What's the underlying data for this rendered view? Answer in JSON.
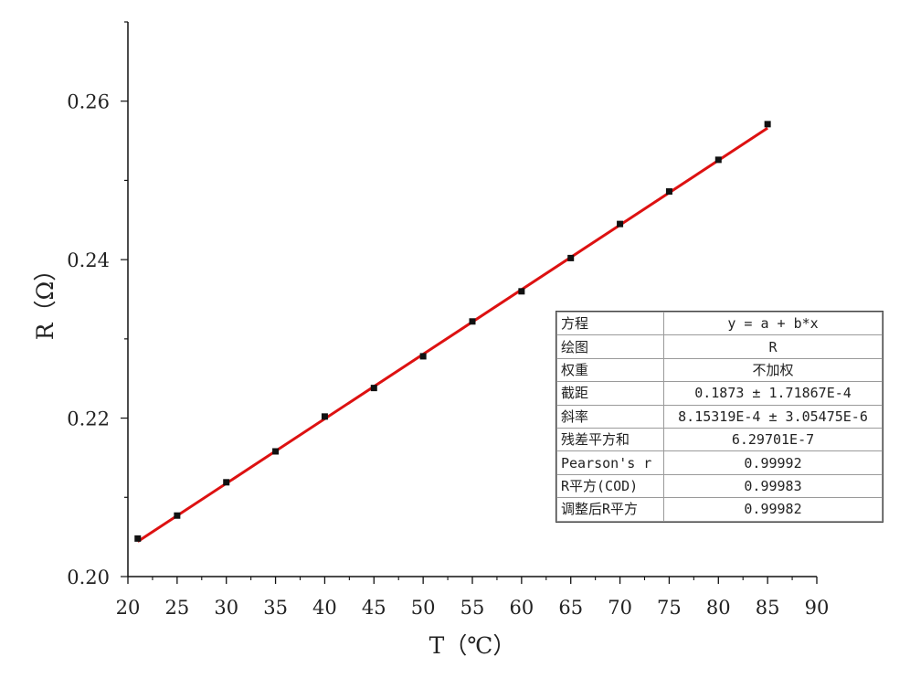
{
  "chart_data": {
    "type": "scatter",
    "xlabel": "T（℃）",
    "ylabel": "R（Ω）",
    "xlim": [
      20,
      90
    ],
    "ylim": [
      0.2,
      0.27
    ],
    "x_ticks": [
      20,
      25,
      30,
      35,
      40,
      45,
      50,
      55,
      60,
      65,
      70,
      75,
      80,
      85,
      90
    ],
    "y_ticks": [
      0.2,
      0.22,
      0.24,
      0.26
    ],
    "y_tick_labels": [
      "0.20",
      "0.22",
      "0.24",
      "0.26"
    ],
    "grid": false,
    "series": [
      {
        "marker": "square",
        "color": "#111111",
        "x": [
          21,
          25,
          30,
          35,
          40,
          45,
          50,
          55,
          60,
          65,
          70,
          75,
          80,
          85
        ],
        "y": [
          0.2048,
          0.2077,
          0.2119,
          0.2158,
          0.2202,
          0.2238,
          0.2278,
          0.2322,
          0.236,
          0.2402,
          0.2445,
          0.2486,
          0.2526,
          0.2571
        ]
      },
      {
        "type": "line",
        "color": "#dd1111",
        "intercept": 0.1873,
        "slope": 0.000815319,
        "x_range": [
          21,
          85
        ]
      }
    ]
  },
  "fit_table": [
    {
      "key": "方程",
      "value": "y = a + b*x"
    },
    {
      "key": "绘图",
      "value": "R"
    },
    {
      "key": "权重",
      "value": "不加权"
    },
    {
      "key": "截距",
      "value": "0.1873 ± 1.71867E-4"
    },
    {
      "key": "斜率",
      "value": "8.15319E-4 ± 3.05475E-6"
    },
    {
      "key": "残差平方和",
      "value": "6.29701E-7"
    },
    {
      "key": "Pearson's r",
      "value": "0.99992"
    },
    {
      "key": "R平方(COD)",
      "value": "0.99983"
    },
    {
      "key": "调整后R平方",
      "value": "0.99982"
    }
  ]
}
